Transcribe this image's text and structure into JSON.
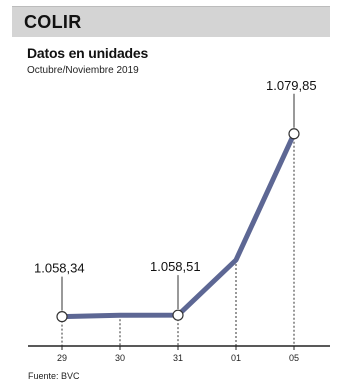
{
  "header": {
    "title": "COLIR",
    "subtitle": "Datos en unidades",
    "period": "Octubre/Noviembre 2019"
  },
  "footer": {
    "source": "Fuente: BVC"
  },
  "colors": {
    "line": "#5d6794",
    "header_bg": "#d4d4d4",
    "text": "#1a1a1a"
  },
  "chart_data": {
    "type": "line",
    "categories": [
      "29",
      "30",
      "31",
      "01",
      "05"
    ],
    "values": [
      1058.34,
      1058.5,
      1058.51,
      1065.0,
      1079.85
    ],
    "annotations": [
      {
        "index": 0,
        "label": "1.058,34"
      },
      {
        "index": 2,
        "label": "1.058,51"
      },
      {
        "index": 4,
        "label": "1.079,85"
      }
    ],
    "ylim": [
      1055,
      1085
    ],
    "grid": false
  }
}
